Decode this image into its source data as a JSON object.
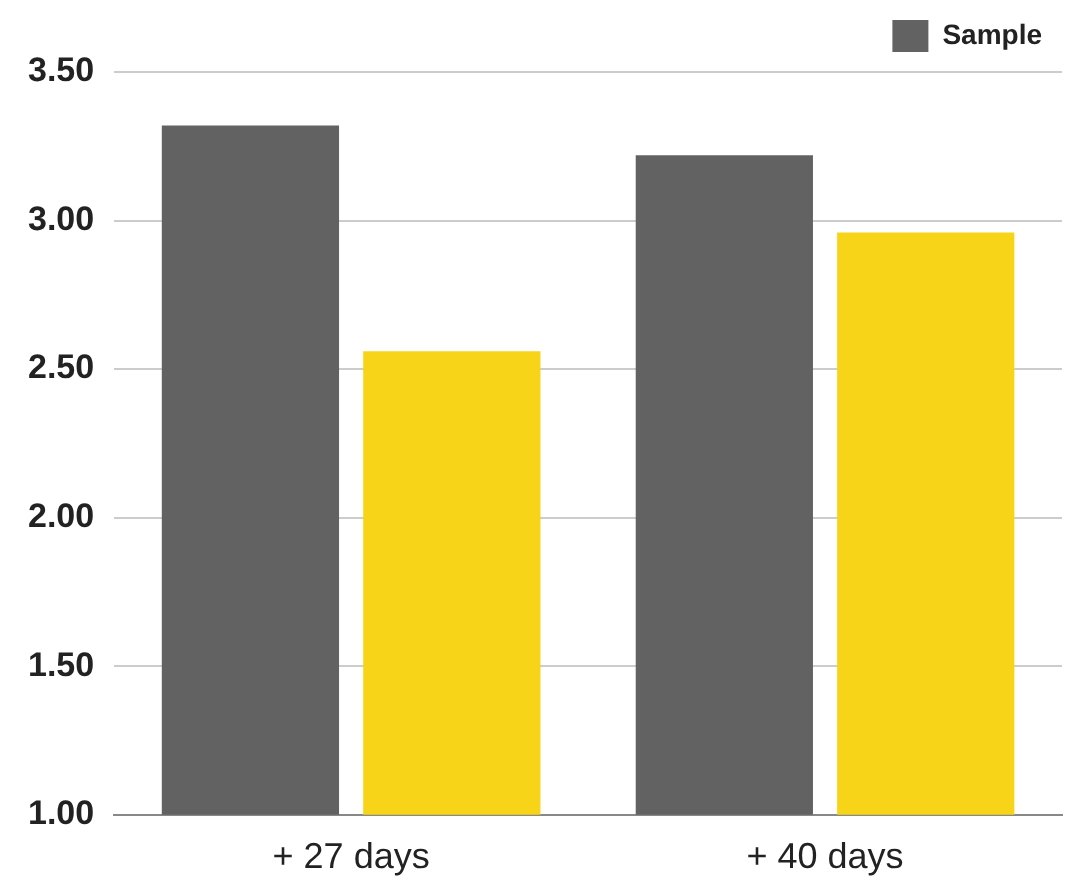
{
  "chart_data": {
    "type": "bar",
    "categories": [
      "+ 27 days",
      "+ 40 days"
    ],
    "series": [
      {
        "name": "Sample",
        "color": "#636262",
        "values": [
          3.32,
          3.22
        ]
      },
      {
        "color": "#f7d417",
        "values": [
          2.56,
          2.96
        ]
      }
    ],
    "ylim": [
      1,
      3.5
    ],
    "yticks": [
      {
        "value": 1,
        "label": "1.00"
      },
      {
        "value": 1.5,
        "label": "1.50"
      },
      {
        "value": 2,
        "label": "2.00"
      },
      {
        "value": 2.5,
        "label": "2.50"
      },
      {
        "value": 3,
        "label": "3.00"
      },
      {
        "value": 3.5,
        "label": "3.50"
      }
    ],
    "grid": "y",
    "legend": "top right"
  }
}
